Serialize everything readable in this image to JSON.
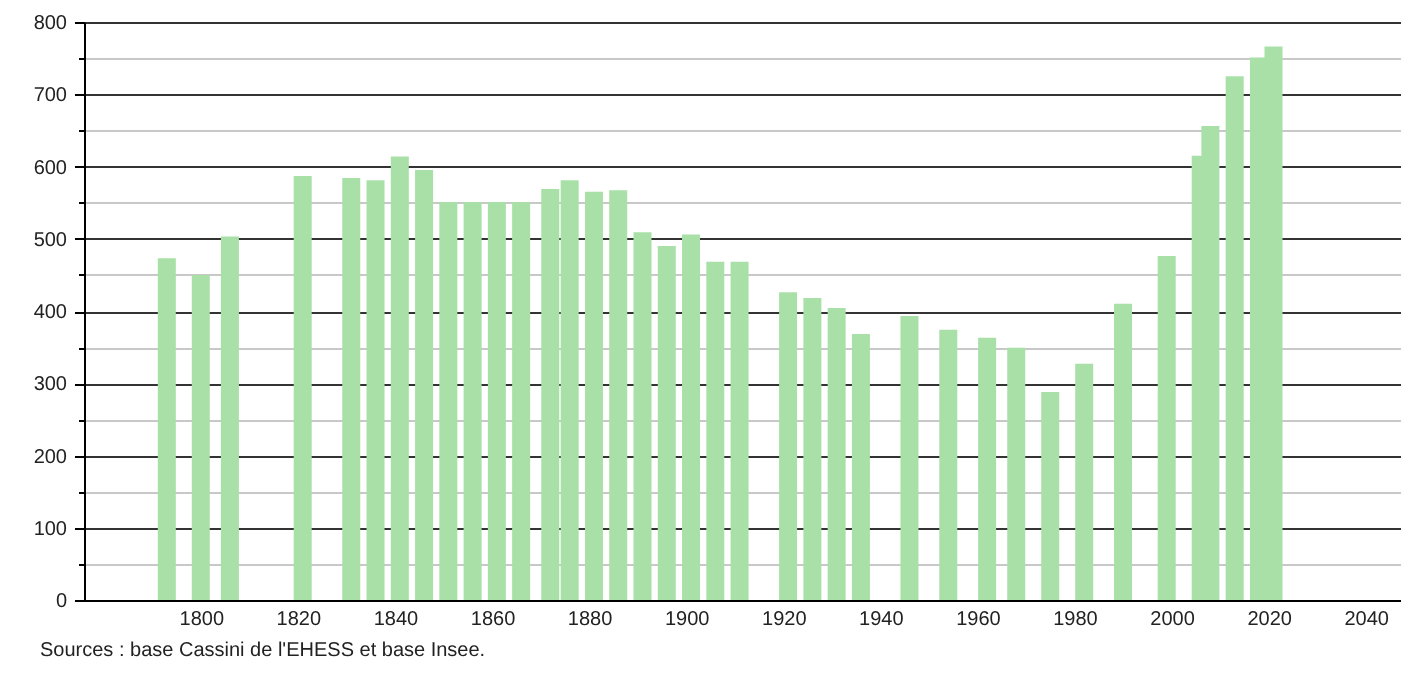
{
  "chart_data": {
    "type": "bar",
    "annotations": [
      "Sources : base Cassini de l'EHESS et base Insee."
    ],
    "x": [
      1793,
      1800,
      1806,
      1821,
      1831,
      1836,
      1841,
      1846,
      1851,
      1856,
      1861,
      1866,
      1872,
      1876,
      1881,
      1886,
      1891,
      1896,
      1901,
      1906,
      1911,
      1921,
      1926,
      1931,
      1936,
      1946,
      1954,
      1962,
      1968,
      1975,
      1982,
      1990,
      1999,
      2006,
      2008,
      2013,
      2018,
      2021
    ],
    "values": [
      473,
      450,
      503,
      587,
      584,
      581,
      614,
      595,
      551,
      551,
      551,
      551,
      569,
      581,
      565,
      567,
      509,
      490,
      506,
      468,
      468,
      426,
      418,
      404,
      368,
      393,
      374,
      363,
      349,
      288,
      327,
      410,
      476,
      615,
      656,
      725,
      751,
      766
    ],
    "color": "#a8e0a8",
    "xlim": [
      1778,
      2045
    ],
    "xticks": [
      1800,
      1820,
      1840,
      1860,
      1880,
      1900,
      1920,
      1940,
      1960,
      1980,
      2000,
      2020,
      2040
    ],
    "ylim": [
      0,
      800
    ],
    "yticks": [
      0,
      {
        "value": 50,
        "label": null
      },
      100,
      {
        "value": 150,
        "label": null
      },
      200,
      {
        "value": 250,
        "label": null
      },
      300,
      {
        "value": 350,
        "label": null
      },
      400,
      {
        "value": 450,
        "label": null
      },
      500,
      {
        "value": 550,
        "label": null
      },
      600,
      {
        "value": 650,
        "label": null
      },
      700,
      {
        "value": 750,
        "label": null
      },
      800
    ],
    "grid": "y"
  }
}
